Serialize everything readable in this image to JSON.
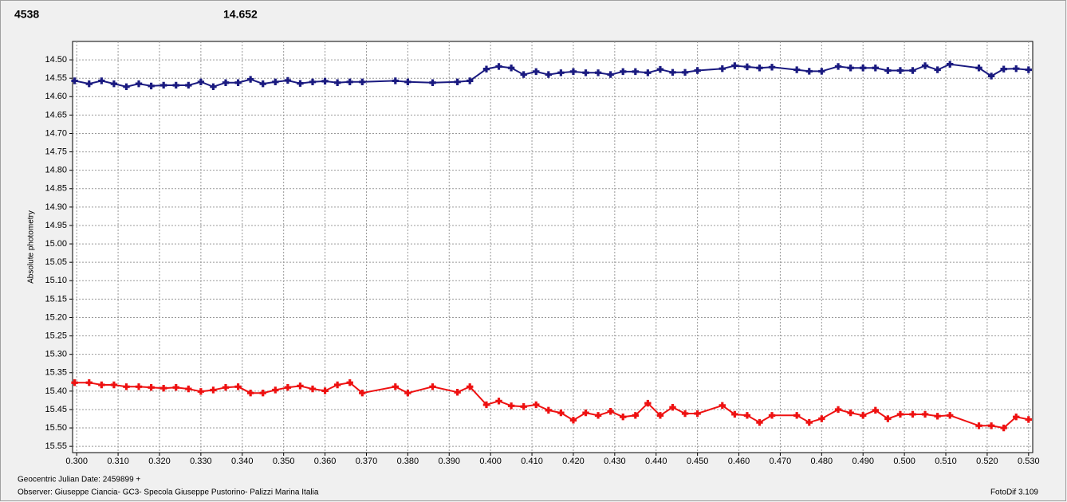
{
  "chart_data": {
    "type": "scatter-line",
    "header": [
      {
        "text": "4538",
        "color": "#ff0000"
      },
      {
        "text": "14.652",
        "color": "#1a1a80"
      }
    ],
    "y_label": "Absolute photometry",
    "x_caption": "Geocentric Julian Date: 2459899 +",
    "observer": "Observer: Giuseppe Ciancia- GC3- Specola Giuseppe Pustorino- Palizzi Marina Italia",
    "software": "FotoDif 3.109",
    "grid": true,
    "xlim": [
      0.299,
      0.531
    ],
    "ylim": [
      15.567,
      14.45
    ],
    "xticks": [
      {
        "value": 0.3,
        "label": "0.300"
      },
      {
        "value": 0.31,
        "label": "0.310"
      },
      {
        "value": 0.32,
        "label": "0.320"
      },
      {
        "value": 0.33,
        "label": "0.330"
      },
      {
        "value": 0.34,
        "label": "0.340"
      },
      {
        "value": 0.35,
        "label": "0.350"
      },
      {
        "value": 0.36,
        "label": "0.360"
      },
      {
        "value": 0.37,
        "label": "0.370"
      },
      {
        "value": 0.38,
        "label": "0.380"
      },
      {
        "value": 0.39,
        "label": "0.390"
      },
      {
        "value": 0.4,
        "label": "0.400"
      },
      {
        "value": 0.41,
        "label": "0.410"
      },
      {
        "value": 0.42,
        "label": "0.420"
      },
      {
        "value": 0.43,
        "label": "0.430"
      },
      {
        "value": 0.44,
        "label": "0.440"
      },
      {
        "value": 0.45,
        "label": "0.450"
      },
      {
        "value": 0.46,
        "label": "0.460"
      },
      {
        "value": 0.47,
        "label": "0.470"
      },
      {
        "value": 0.48,
        "label": "0.480"
      },
      {
        "value": 0.49,
        "label": "0.490"
      },
      {
        "value": 0.5,
        "label": "0.500"
      },
      {
        "value": 0.51,
        "label": "0.510"
      },
      {
        "value": 0.52,
        "label": "0.520"
      },
      {
        "value": 0.53,
        "label": "0.530"
      }
    ],
    "yticks": [
      {
        "value": 14.5,
        "label": "14.50"
      },
      14.55,
      {
        "value": 14.6,
        "label": "14.60"
      },
      14.65,
      {
        "value": 14.7,
        "label": "14.70"
      },
      14.75,
      {
        "value": 14.8,
        "label": "14.80"
      },
      14.85,
      {
        "value": 14.9,
        "label": "14.90"
      },
      14.95,
      {
        "value": 15,
        "label": "15.00"
      },
      15.05,
      {
        "value": 15.1,
        "label": "15.10"
      },
      15.15,
      {
        "value": 15.2,
        "label": "15.20"
      },
      15.25,
      {
        "value": 15.3,
        "label": "15.30"
      },
      15.35,
      {
        "value": 15.4,
        "label": "15.40"
      },
      15.45,
      {
        "value": 15.5,
        "label": "15.50"
      },
      15.55
    ],
    "x": [
      0.2995,
      0.303,
      0.306,
      0.309,
      0.312,
      0.315,
      0.318,
      0.321,
      0.324,
      0.327,
      0.33,
      0.333,
      0.336,
      0.339,
      0.342,
      0.345,
      0.348,
      0.351,
      0.354,
      0.357,
      0.36,
      0.363,
      0.366,
      0.369,
      0.377,
      0.38,
      0.386,
      0.392,
      0.395,
      0.399,
      0.402,
      0.405,
      0.408,
      0.411,
      0.414,
      0.417,
      0.42,
      0.423,
      0.426,
      0.429,
      0.432,
      0.435,
      0.438,
      0.441,
      0.444,
      0.447,
      0.45,
      0.456,
      0.459,
      0.462,
      0.465,
      0.468,
      0.474,
      0.477,
      0.48,
      0.484,
      0.487,
      0.49,
      0.493,
      0.496,
      0.499,
      0.502,
      0.505,
      0.508,
      0.511,
      0.518,
      0.521,
      0.524,
      0.527,
      0.53
    ],
    "series": [
      {
        "color": "#1a1a80",
        "values": [
          14.557,
          14.565,
          14.557,
          14.565,
          14.573,
          14.565,
          14.571,
          14.569,
          14.569,
          14.569,
          14.56,
          14.573,
          14.562,
          14.562,
          14.553,
          14.565,
          14.56,
          14.556,
          14.564,
          14.56,
          14.558,
          14.562,
          14.56,
          14.56,
          14.557,
          14.56,
          14.562,
          14.56,
          14.557,
          14.525,
          14.518,
          14.522,
          14.54,
          14.532,
          14.54,
          14.535,
          14.532,
          14.535,
          14.535,
          14.54,
          14.532,
          14.532,
          14.535,
          14.526,
          14.534,
          14.534,
          14.529,
          14.524,
          14.516,
          14.519,
          14.522,
          14.52,
          14.527,
          14.531,
          14.531,
          14.518,
          14.522,
          14.522,
          14.522,
          14.529,
          14.529,
          14.529,
          14.516,
          14.527,
          14.512,
          14.522,
          14.544,
          14.525,
          14.524,
          14.527
        ]
      },
      {
        "color": "#ee1111",
        "values": [
          15.377,
          15.377,
          15.383,
          15.383,
          15.388,
          15.388,
          15.39,
          15.392,
          15.39,
          15.394,
          15.401,
          15.397,
          15.39,
          15.388,
          15.405,
          15.405,
          15.397,
          15.39,
          15.386,
          15.394,
          15.399,
          15.383,
          15.377,
          15.405,
          15.388,
          15.405,
          15.388,
          15.403,
          15.388,
          15.437,
          15.427,
          15.44,
          15.442,
          15.437,
          15.452,
          15.459,
          15.479,
          15.459,
          15.466,
          15.455,
          15.47,
          15.466,
          15.433,
          15.466,
          15.444,
          15.461,
          15.461,
          15.439,
          15.463,
          15.466,
          15.485,
          15.466,
          15.466,
          15.485,
          15.475,
          15.45,
          15.459,
          15.466,
          15.452,
          15.475,
          15.463,
          15.463,
          15.463,
          15.468,
          15.466,
          15.494,
          15.494,
          15.5,
          15.47,
          15.477
        ]
      }
    ]
  }
}
